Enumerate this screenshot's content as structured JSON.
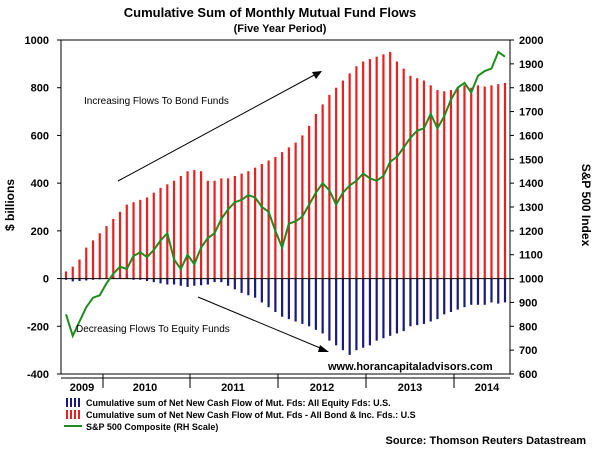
{
  "chart_data": {
    "type": "bar",
    "title": "Cumulative Sum of Monthly Mutual Fund Flows",
    "subtitle": "(Five Year Period)",
    "ylabel_left": "$ billions",
    "ylabel_right": "S&P 500 Index",
    "ylim_left": [
      -400,
      1000
    ],
    "yticks_left": [
      "1000",
      "800",
      "600",
      "400",
      "200",
      "0",
      "-200",
      "-400"
    ],
    "ylim_right": [
      600,
      2000
    ],
    "yticks_right": [
      "2000",
      "1900",
      "1800",
      "1700",
      "1600",
      "1500",
      "1400",
      "1300",
      "1200",
      "1100",
      "1000",
      "900",
      "800",
      "700",
      "600"
    ],
    "x_year_labels": [
      "2009",
      "2010",
      "2011",
      "2012",
      "2013",
      "2014"
    ],
    "months": 66,
    "series": [
      {
        "name": "Cumulative sum of Net New Cash Flow of Mut. Fds: All Equity Fds: U.S.",
        "color": "#1a1a7a",
        "type": "bar",
        "values": [
          -5,
          -12,
          -10,
          -8,
          -5,
          -3,
          5,
          10,
          15,
          20,
          -5,
          -5,
          -10,
          -15,
          -20,
          -25,
          -25,
          -30,
          -35,
          -30,
          -28,
          -25,
          -15,
          -15,
          -30,
          -45,
          -60,
          -70,
          -80,
          -100,
          -120,
          -140,
          -160,
          -170,
          -180,
          -190,
          -200,
          -215,
          -230,
          -260,
          -280,
          -300,
          -320,
          -300,
          -290,
          -280,
          -260,
          -250,
          -240,
          -230,
          -220,
          -200,
          -195,
          -190,
          -180,
          -170,
          -150,
          -140,
          -130,
          -120,
          -110,
          -110,
          -110,
          -100,
          -105,
          -100
        ]
      },
      {
        "name": "Cumulative sum of Net New Cash Flow of  Mut. Fds - All Bond & Inc. Fds.: U.S",
        "color": "#e82020",
        "type": "bar",
        "values": [
          30,
          50,
          80,
          130,
          160,
          190,
          220,
          250,
          280,
          310,
          320,
          330,
          340,
          360,
          380,
          395,
          410,
          430,
          450,
          455,
          450,
          410,
          410,
          420,
          420,
          430,
          440,
          450,
          465,
          480,
          495,
          510,
          530,
          550,
          570,
          600,
          640,
          690,
          730,
          770,
          800,
          830,
          860,
          890,
          910,
          920,
          930,
          940,
          950,
          910,
          880,
          850,
          840,
          830,
          810,
          790,
          785,
          790,
          800,
          810,
          800,
          810,
          805,
          810,
          815,
          820
        ]
      },
      {
        "name": "S&P 500 Composite (RH Scale)",
        "color": "#1e8c1e",
        "type": "line",
        "values": [
          850,
          760,
          820,
          880,
          920,
          930,
          980,
          1020,
          1050,
          1040,
          1095,
          1110,
          1090,
          1120,
          1160,
          1190,
          1080,
          1040,
          1100,
          1060,
          1130,
          1170,
          1190,
          1250,
          1290,
          1320,
          1330,
          1350,
          1340,
          1300,
          1280,
          1200,
          1130,
          1230,
          1240,
          1260,
          1310,
          1360,
          1400,
          1370,
          1310,
          1360,
          1390,
          1410,
          1440,
          1420,
          1410,
          1430,
          1490,
          1510,
          1550,
          1590,
          1620,
          1630,
          1690,
          1630,
          1680,
          1750,
          1800,
          1820,
          1780,
          1850,
          1870,
          1880,
          1950,
          1930
        ]
      }
    ],
    "annotations": [
      "Increasing Flows To Bond Funds",
      "Decreasing Flows To Equity Funds"
    ]
  },
  "website": "www.horancapitaladvisors.com",
  "source": "Source: Thomson Reuters Datastream"
}
